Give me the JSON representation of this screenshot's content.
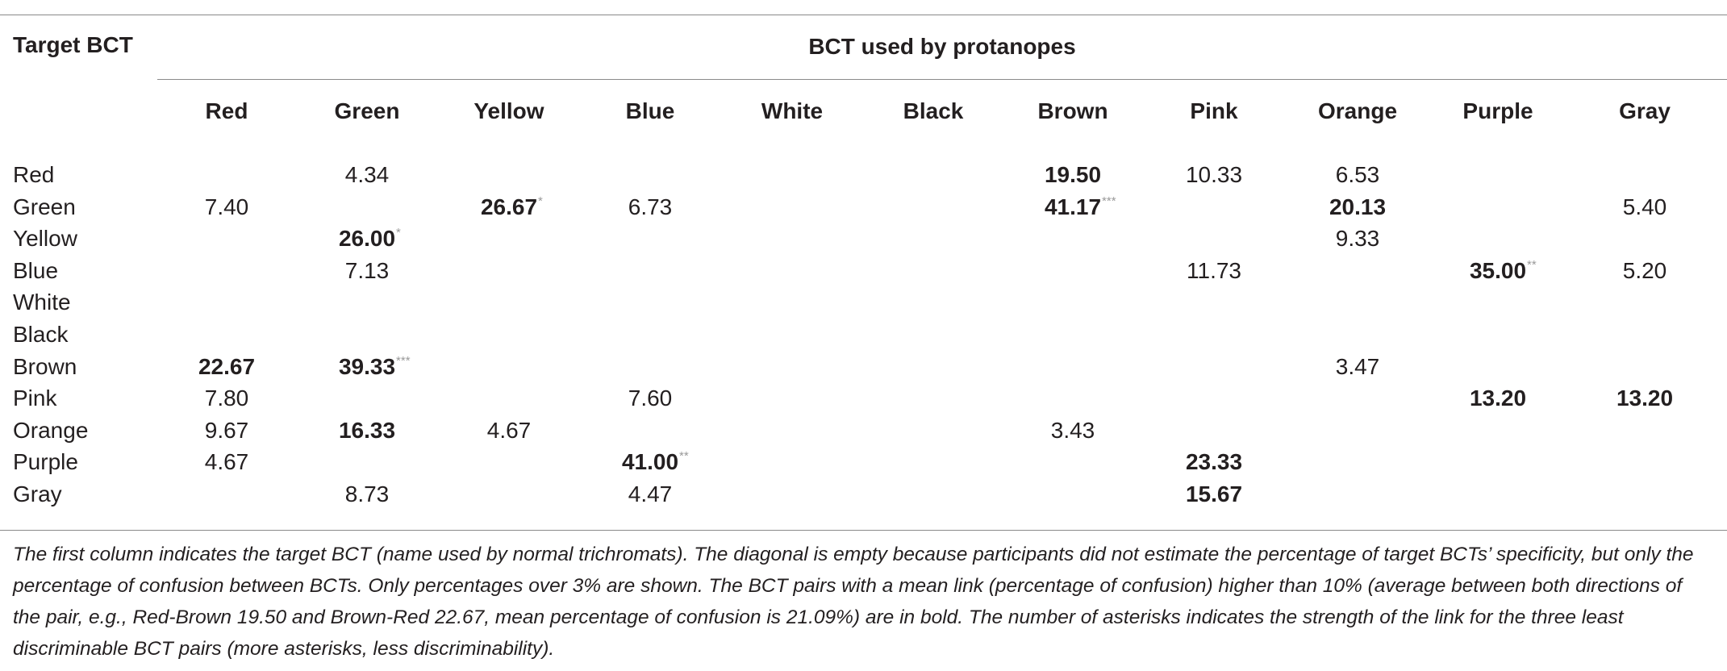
{
  "table": {
    "stub_header": "Target BCT",
    "group_header": "BCT used by protanopes",
    "columns": [
      "Red",
      "Green",
      "Yellow",
      "Blue",
      "White",
      "Black",
      "Brown",
      "Pink",
      "Orange",
      "Purple",
      "Gray"
    ],
    "rows": [
      {
        "label": "Red",
        "cells": [
          {
            "col": 1,
            "value": "4.34",
            "bold": false,
            "stars": ""
          },
          {
            "col": 6,
            "value": "19.50",
            "bold": true,
            "stars": ""
          },
          {
            "col": 7,
            "value": "10.33",
            "bold": false,
            "stars": ""
          },
          {
            "col": 8,
            "value": "6.53",
            "bold": false,
            "stars": ""
          }
        ]
      },
      {
        "label": "Green",
        "cells": [
          {
            "col": 0,
            "value": "7.40",
            "bold": false,
            "stars": ""
          },
          {
            "col": 2,
            "value": "26.67",
            "bold": true,
            "stars": "*"
          },
          {
            "col": 3,
            "value": "6.73",
            "bold": false,
            "stars": ""
          },
          {
            "col": 6,
            "value": "41.17",
            "bold": true,
            "stars": "***"
          },
          {
            "col": 8,
            "value": "20.13",
            "bold": true,
            "stars": ""
          },
          {
            "col": 10,
            "value": "5.40",
            "bold": false,
            "stars": ""
          }
        ]
      },
      {
        "label": "Yellow",
        "cells": [
          {
            "col": 1,
            "value": "26.00",
            "bold": true,
            "stars": "*"
          },
          {
            "col": 8,
            "value": "9.33",
            "bold": false,
            "stars": ""
          }
        ]
      },
      {
        "label": "Blue",
        "cells": [
          {
            "col": 1,
            "value": "7.13",
            "bold": false,
            "stars": ""
          },
          {
            "col": 7,
            "value": "11.73",
            "bold": false,
            "stars": ""
          },
          {
            "col": 9,
            "value": "35.00",
            "bold": true,
            "stars": "**"
          },
          {
            "col": 10,
            "value": "5.20",
            "bold": false,
            "stars": ""
          }
        ]
      },
      {
        "label": "White",
        "cells": []
      },
      {
        "label": "Black",
        "cells": []
      },
      {
        "label": "Brown",
        "cells": [
          {
            "col": 0,
            "value": "22.67",
            "bold": true,
            "stars": ""
          },
          {
            "col": 1,
            "value": "39.33",
            "bold": true,
            "stars": "***"
          },
          {
            "col": 8,
            "value": "3.47",
            "bold": false,
            "stars": ""
          }
        ]
      },
      {
        "label": "Pink",
        "cells": [
          {
            "col": 0,
            "value": "7.80",
            "bold": false,
            "stars": ""
          },
          {
            "col": 3,
            "value": "7.60",
            "bold": false,
            "stars": ""
          },
          {
            "col": 9,
            "value": "13.20",
            "bold": true,
            "stars": ""
          },
          {
            "col": 10,
            "value": "13.20",
            "bold": true,
            "stars": ""
          }
        ]
      },
      {
        "label": "Orange",
        "cells": [
          {
            "col": 0,
            "value": "9.67",
            "bold": false,
            "stars": ""
          },
          {
            "col": 1,
            "value": "16.33",
            "bold": true,
            "stars": ""
          },
          {
            "col": 2,
            "value": "4.67",
            "bold": false,
            "stars": ""
          },
          {
            "col": 6,
            "value": "3.43",
            "bold": false,
            "stars": ""
          }
        ]
      },
      {
        "label": "Purple",
        "cells": [
          {
            "col": 0,
            "value": "4.67",
            "bold": false,
            "stars": ""
          },
          {
            "col": 3,
            "value": "41.00",
            "bold": true,
            "stars": "**"
          },
          {
            "col": 7,
            "value": "23.33",
            "bold": true,
            "stars": ""
          }
        ]
      },
      {
        "label": "Gray",
        "cells": [
          {
            "col": 1,
            "value": "8.73",
            "bold": false,
            "stars": ""
          },
          {
            "col": 3,
            "value": "4.47",
            "bold": false,
            "stars": ""
          },
          {
            "col": 7,
            "value": "15.67",
            "bold": true,
            "stars": ""
          }
        ]
      }
    ]
  },
  "footnote": "The first column indicates the target BCT (name used by normal trichromats). The diagonal is empty because participants did not estimate the percentage of target BCTs’ specificity, but only the percentage of confusion between BCTs. Only percentages over 3% are shown. The BCT pairs with a mean link (percentage of confusion) higher than 10% (average between both directions of the pair, e.g., Red-Brown 19.50 and Brown-Red 22.67, mean percentage of confusion is 21.09%) are in bold. The number of asterisks indicates the strength of the link for the three least discriminable BCT pairs (more asterisks, less discriminability)."
}
